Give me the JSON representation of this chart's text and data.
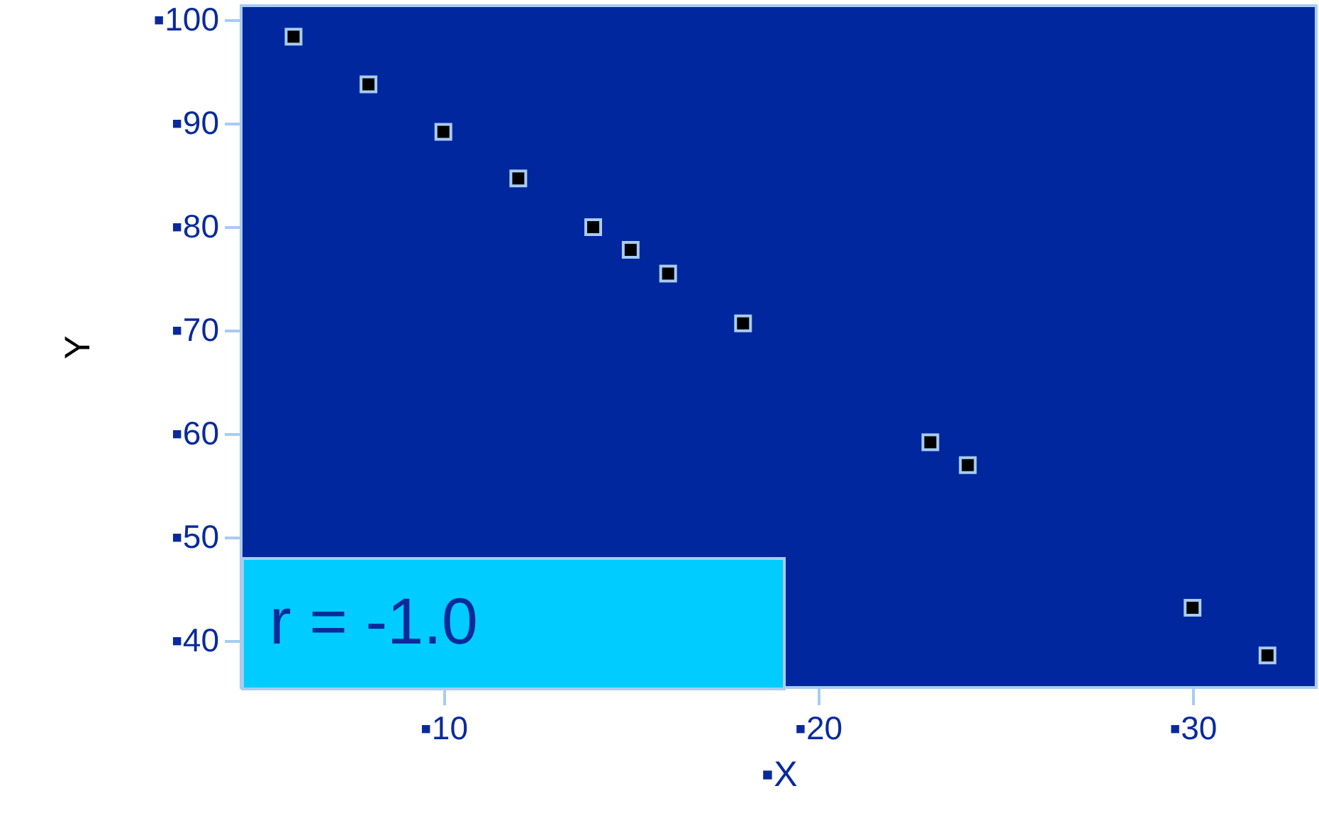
{
  "chart_data": {
    "type": "scatter",
    "xlabel": "▪X",
    "ylabel": "Y",
    "x": [
      6,
      8,
      10,
      12,
      14,
      15,
      16,
      18,
      23,
      24,
      30,
      32
    ],
    "series": [
      {
        "color": "#000000",
        "values": [
          98.4,
          93.8,
          89.2,
          84.7,
          80.0,
          77.8,
          75.5,
          70.7,
          59.2,
          57.0,
          43.2,
          38.6
        ]
      }
    ],
    "xlim": [
      4.6,
      33.3
    ],
    "ylim": [
      35.5,
      101.4
    ],
    "xticks": [
      {
        "value": 10,
        "label": "▪10"
      },
      {
        "value": 20,
        "label": "▪20"
      },
      {
        "value": 30,
        "label": "▪30"
      }
    ],
    "yticks": [
      {
        "value": 40,
        "label": "▪40"
      },
      {
        "value": 50,
        "label": "▪50"
      },
      {
        "value": 60,
        "label": "▪60"
      },
      {
        "value": 70,
        "label": "▪70"
      },
      {
        "value": 80,
        "label": "▪80"
      },
      {
        "value": 90,
        "label": "▪90"
      },
      {
        "value": 100,
        "label": "▪100"
      }
    ],
    "marker": "square",
    "grid": false,
    "annotations": [
      "r = -1.0"
    ]
  }
}
